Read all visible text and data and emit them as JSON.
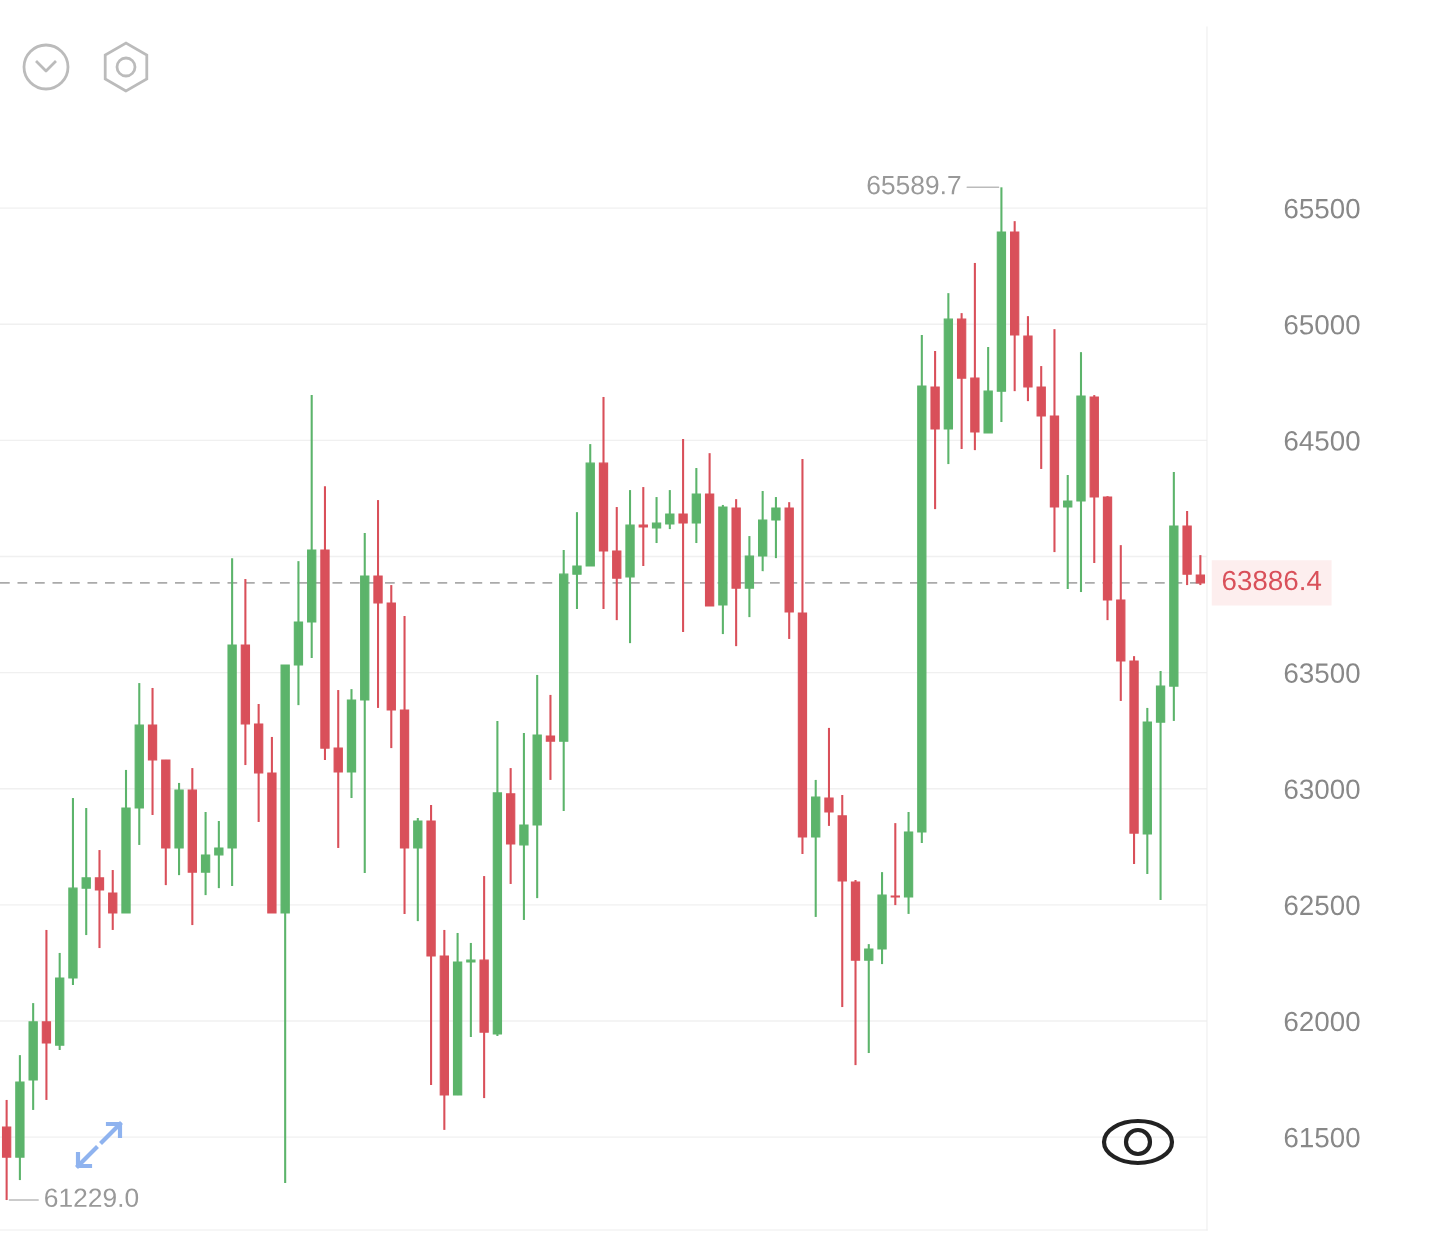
{
  "chart_data": {
    "type": "candlestick",
    "categories": [
      null,
      null,
      null,
      null,
      null,
      null,
      null,
      null,
      null,
      null,
      null,
      null,
      null,
      null,
      null,
      null,
      null,
      null,
      null,
      null,
      null,
      null,
      null,
      null,
      null,
      null,
      null,
      null,
      null,
      null,
      null,
      null,
      null,
      null,
      null,
      null,
      null,
      null,
      null,
      null,
      null,
      null,
      null,
      null,
      null,
      null,
      null,
      null,
      null,
      null,
      null,
      null,
      null,
      null,
      null,
      null,
      null,
      null,
      null,
      null,
      null,
      null,
      null,
      null,
      null,
      null,
      null,
      null,
      null,
      null,
      null,
      null,
      null,
      null,
      null,
      null,
      null,
      null,
      null,
      null,
      null,
      null,
      null,
      null,
      null,
      null,
      null,
      null,
      null,
      null,
      null
    ],
    "ohlc": [
      [
        61543,
        61660,
        61229,
        61414
      ],
      [
        61414,
        61853,
        61315,
        61737
      ],
      [
        61746,
        62077,
        61617,
        61996
      ],
      [
        61996,
        62392,
        61660,
        61905
      ],
      [
        61896,
        62293,
        61875,
        62185
      ],
      [
        62185,
        62960,
        62155,
        62572
      ],
      [
        62572,
        62917,
        62370,
        62616
      ],
      [
        62616,
        62736,
        62314,
        62564
      ],
      [
        62551,
        62650,
        62392,
        62465
      ],
      [
        62465,
        63081,
        62465,
        62917
      ],
      [
        62917,
        63455,
        62758,
        63274
      ],
      [
        63274,
        63434,
        62887,
        63124
      ],
      [
        63124,
        63124,
        62585,
        62745
      ],
      [
        62745,
        63025,
        62628,
        62994
      ],
      [
        62994,
        63089,
        62413,
        62641
      ],
      [
        62641,
        62900,
        62542,
        62715
      ],
      [
        62715,
        62861,
        62572,
        62745
      ],
      [
        62745,
        63993,
        62581,
        63619
      ],
      [
        63619,
        63903,
        63102,
        63279
      ],
      [
        63279,
        63365,
        62857,
        63068
      ],
      [
        63068,
        63223,
        62465,
        62465
      ],
      [
        62465,
        63533,
        61302,
        63533
      ],
      [
        63533,
        63980,
        63360,
        63718
      ],
      [
        63718,
        64695,
        63563,
        64028
      ],
      [
        64028,
        64303,
        63124,
        63175
      ],
      [
        63175,
        63425,
        62745,
        63072
      ],
      [
        63072,
        63429,
        62960,
        63382
      ],
      [
        63382,
        64101,
        62637,
        63916
      ],
      [
        63916,
        64243,
        63348,
        63800
      ],
      [
        63800,
        63877,
        63175,
        63339
      ],
      [
        63339,
        63744,
        62461,
        62745
      ],
      [
        62745,
        62874,
        62430,
        62861
      ],
      [
        62861,
        62930,
        61724,
        62280
      ],
      [
        62280,
        62392,
        61531,
        61681
      ],
      [
        61681,
        62379,
        61681,
        62254
      ],
      [
        62254,
        62336,
        61931,
        62262
      ],
      [
        62262,
        62624,
        61668,
        61952
      ],
      [
        61944,
        63292,
        61935,
        62982
      ],
      [
        62978,
        63089,
        62590,
        62762
      ],
      [
        62758,
        63240,
        62435,
        62844
      ],
      [
        62844,
        63490,
        62529,
        63231
      ],
      [
        63227,
        63404,
        63038,
        63205
      ],
      [
        63205,
        64028,
        62904,
        63924
      ],
      [
        63924,
        64191,
        63774,
        63959
      ],
      [
        63959,
        64484,
        63959,
        64402
      ],
      [
        64402,
        64687,
        63774,
        64024
      ],
      [
        64024,
        64213,
        63726,
        63907
      ],
      [
        63912,
        64286,
        63627,
        64135
      ],
      [
        64135,
        64299,
        63959,
        64127
      ],
      [
        64123,
        64256,
        64058,
        64144
      ],
      [
        64140,
        64286,
        64118,
        64183
      ],
      [
        64183,
        64506,
        63675,
        64144
      ],
      [
        64144,
        64381,
        64058,
        64269
      ],
      [
        64269,
        64445,
        63787,
        63787
      ],
      [
        63791,
        64222,
        63666,
        64213
      ],
      [
        64209,
        64247,
        63614,
        63864
      ],
      [
        63864,
        64088,
        63739,
        64002
      ],
      [
        64002,
        64282,
        63937,
        64157
      ],
      [
        64157,
        64256,
        63993,
        64209
      ],
      [
        64209,
        64234,
        63645,
        63761
      ],
      [
        63757,
        64420,
        62719,
        62792
      ],
      [
        62792,
        63038,
        62448,
        62964
      ],
      [
        62960,
        63262,
        62840,
        62900
      ],
      [
        62883,
        62973,
        62060,
        62603
      ],
      [
        62598,
        62607,
        61810,
        62262
      ],
      [
        62262,
        62331,
        61862,
        62310
      ],
      [
        62310,
        62641,
        62245,
        62542
      ],
      [
        62538,
        62852,
        62499,
        62534
      ],
      [
        62534,
        62900,
        62461,
        62814
      ],
      [
        62814,
        64954,
        62766,
        64734
      ],
      [
        64730,
        64885,
        64204,
        64549
      ],
      [
        64549,
        65134,
        64398,
        65022
      ],
      [
        65022,
        65048,
        64463,
        64768
      ],
      [
        64768,
        65264,
        64458,
        64536
      ],
      [
        64532,
        64902,
        64532,
        64712
      ],
      [
        64712,
        65589.7,
        64579,
        65397
      ],
      [
        65397,
        65444,
        64712,
        64954
      ],
      [
        64949,
        65035,
        64669,
        64730
      ],
      [
        64730,
        64820,
        64377,
        64605
      ],
      [
        64605,
        64979,
        64019,
        64213
      ],
      [
        64213,
        64351,
        63860,
        64239
      ],
      [
        64239,
        64880,
        63847,
        64691
      ],
      [
        64687,
        64695,
        63972,
        64256
      ],
      [
        64256,
        64260,
        63726,
        63813
      ],
      [
        63813,
        64049,
        63378,
        63550
      ],
      [
        63550,
        63571,
        62676,
        62809
      ],
      [
        62805,
        63348,
        62633,
        63287
      ],
      [
        63287,
        63507,
        62521,
        63442
      ],
      [
        63442,
        64364,
        63292,
        64131
      ],
      [
        64131,
        64196,
        63877,
        63924
      ],
      [
        63920,
        64006,
        63877,
        63886.4
      ]
    ],
    "colors": [
      "#d9505a",
      "#5cb46b",
      "#5cb46b",
      "#d9505a",
      "#5cb46b",
      "#5cb46b",
      "#5cb46b",
      "#d9505a",
      "#d9505a",
      "#5cb46b",
      "#5cb46b",
      "#d9505a",
      "#d9505a",
      "#5cb46b",
      "#d9505a",
      "#5cb46b",
      "#5cb46b",
      "#5cb46b",
      "#d9505a",
      "#d9505a",
      "#d9505a",
      "#5cb46b",
      "#5cb46b",
      "#5cb46b",
      "#d9505a",
      "#d9505a",
      "#5cb46b",
      "#5cb46b",
      "#d9505a",
      "#d9505a",
      "#d9505a",
      "#5cb46b",
      "#d9505a",
      "#d9505a",
      "#5cb46b",
      "#5cb46b",
      "#d9505a",
      "#5cb46b",
      "#d9505a",
      "#5cb46b",
      "#5cb46b",
      "#d9505a",
      "#5cb46b",
      "#5cb46b",
      "#5cb46b",
      "#d9505a",
      "#d9505a",
      "#5cb46b",
      "#d9505a",
      "#5cb46b",
      "#5cb46b",
      "#d9505a",
      "#5cb46b",
      "#d9505a",
      "#5cb46b",
      "#d9505a",
      "#5cb46b",
      "#5cb46b",
      "#5cb46b",
      "#d9505a",
      "#d9505a",
      "#5cb46b",
      "#d9505a",
      "#d9505a",
      "#d9505a",
      "#5cb46b",
      "#5cb46b",
      "#d9505a",
      "#5cb46b",
      "#5cb46b",
      "#d9505a",
      "#5cb46b",
      "#d9505a",
      "#d9505a",
      "#5cb46b",
      "#5cb46b",
      "#d9505a",
      "#d9505a",
      "#d9505a",
      "#d9505a",
      "#5cb46b",
      "#5cb46b",
      "#d9505a",
      "#d9505a",
      "#d9505a",
      "#d9505a",
      "#5cb46b",
      "#5cb46b",
      "#5cb46b",
      "#d9505a",
      "#d9505a"
    ],
    "ylim": [
      61100,
      66280
    ],
    "yticks": [
      61500,
      62000,
      62500,
      63000,
      63500,
      {
        "value": 64000,
        "label": null
      },
      64500,
      65000,
      65500
    ],
    "grid": "y",
    "tick_labels": "y",
    "annotations": [
      "65589.7",
      "61229.0"
    ],
    "ref_lines": [
      {
        "axis": "y",
        "value": 63886.4,
        "label": "63886.4",
        "color": "#aaaaaa",
        "line_style": "dashed"
      }
    ]
  }
}
